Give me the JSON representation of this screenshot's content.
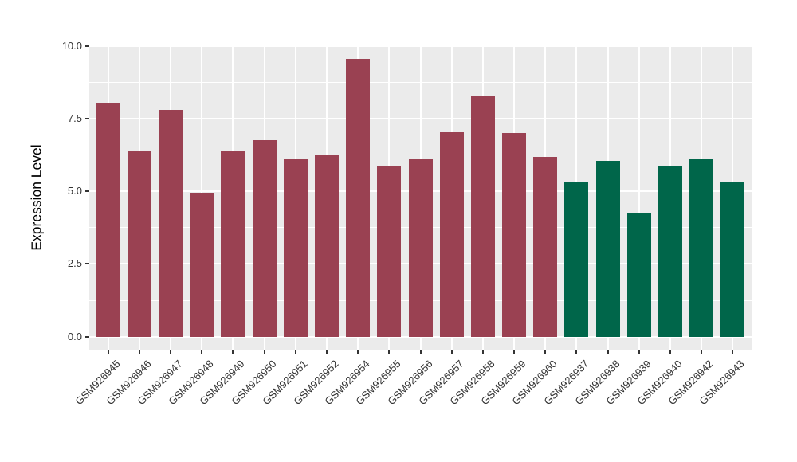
{
  "figure": {
    "background": "#FFFFFF",
    "panel_background": "#EBEBEB",
    "grid_color": "#FFFFFF",
    "tick_mark_color": "#333333",
    "tick_label_color": "#333333",
    "axis_title_color": "#000000"
  },
  "chart_data": {
    "type": "bar",
    "title": "",
    "xlabel": "",
    "ylabel": "Expression Level",
    "legend_position": "none",
    "grid": "major+minor",
    "categories": [
      "GSM926945",
      "GSM926946",
      "GSM926947",
      "GSM926948",
      "GSM926949",
      "GSM926950",
      "GSM926951",
      "GSM926952",
      "GSM926954",
      "GSM926955",
      "GSM926956",
      "GSM926957",
      "GSM926958",
      "GSM926959",
      "GSM926960",
      "GSM926937",
      "GSM926938",
      "GSM926939",
      "GSM926940",
      "GSM926942",
      "GSM926943"
    ],
    "values": [
      8.05,
      6.4,
      7.8,
      4.95,
      6.4,
      6.75,
      6.1,
      6.25,
      9.55,
      5.85,
      6.1,
      7.05,
      8.3,
      7.0,
      6.2,
      5.35,
      6.05,
      4.25,
      5.85,
      6.1,
      5.35
    ],
    "groups": [
      "group1",
      "group1",
      "group1",
      "group1",
      "group1",
      "group1",
      "group1",
      "group1",
      "group1",
      "group1",
      "group1",
      "group1",
      "group1",
      "group1",
      "group1",
      "group2",
      "group2",
      "group2",
      "group2",
      "group2",
      "group2"
    ],
    "group_colors": {
      "group1": "#9A4152",
      "group2": "#00664A"
    },
    "ylim": [
      -0.45,
      10.0
    ],
    "bar_base": 0,
    "yticks": [
      0.0,
      2.5,
      5.0,
      7.5,
      10.0
    ],
    "ytick_labels": [
      "0.0",
      "2.5",
      "5.0",
      "7.5",
      "10.0"
    ],
    "yticks_minor": [
      1.25,
      3.75,
      6.25,
      8.75
    ]
  }
}
